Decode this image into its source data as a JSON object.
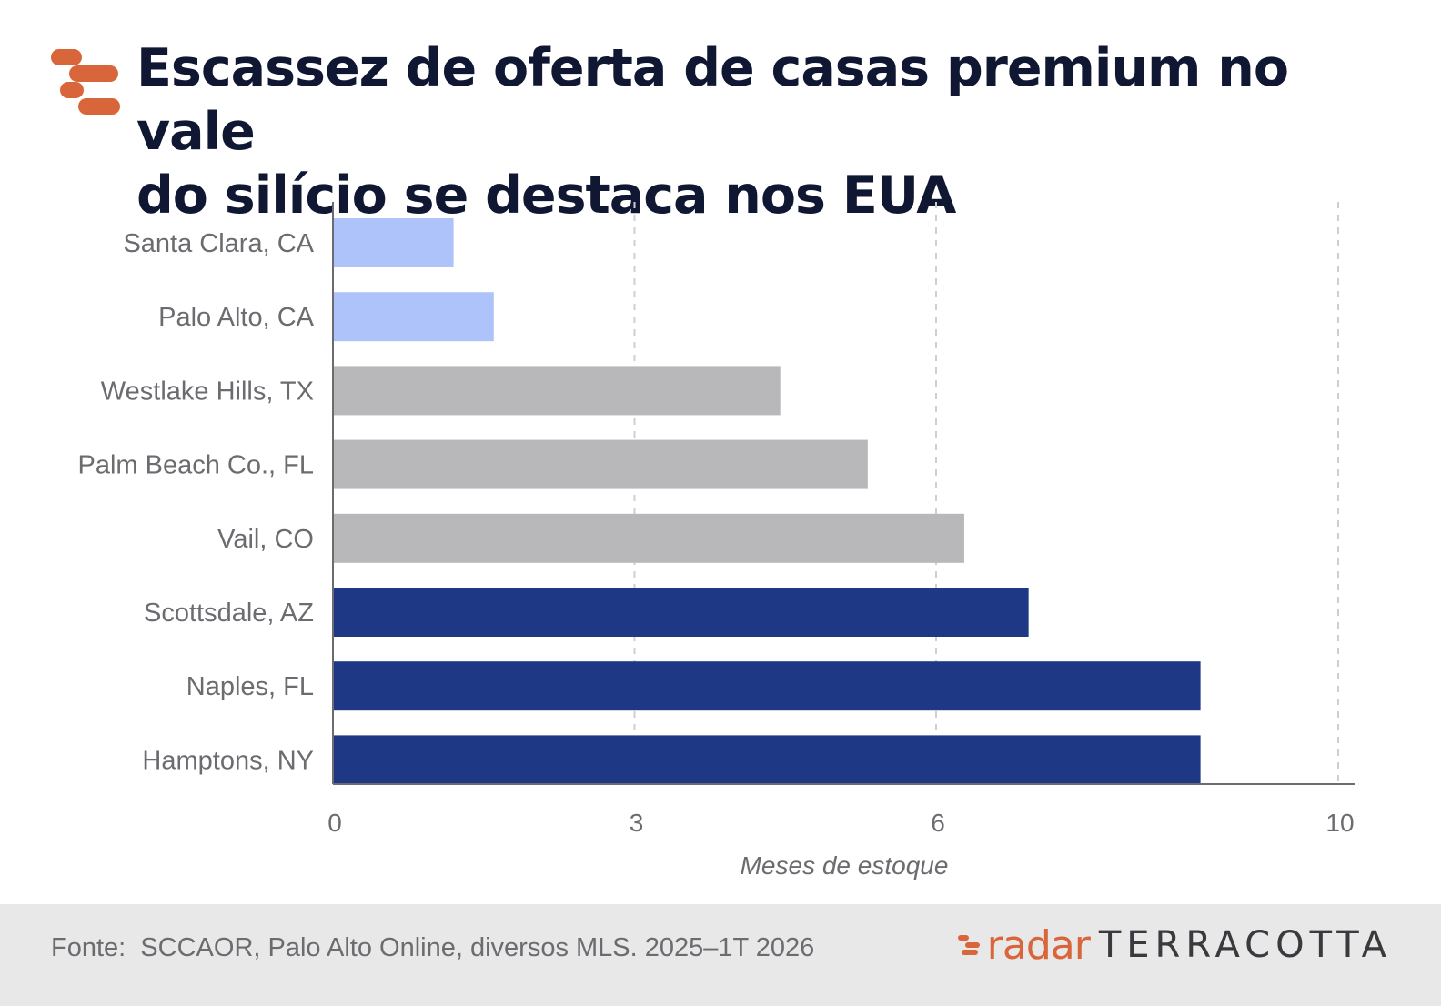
{
  "title_line1": "Escassez de oferta de casas premium no vale",
  "title_line2": "do silício se destaca nos EUA",
  "source": "Fonte:  SCCAOR, Palo Alto Online, diversos MLS. 2025–1T 2026",
  "brand": {
    "radar": "radar",
    "name": "TERRACOTTA"
  },
  "colors": {
    "accent": "#d9653a",
    "light_blue": "#adc3fa",
    "gray": "#b8b8bb",
    "navy": "#1f3885",
    "title": "#0f1733"
  },
  "chart_data": {
    "type": "bar",
    "orientation": "horizontal",
    "categories": [
      "Santa Clara, CA",
      "Palo Alto, CA",
      "Westlake Hills, TX",
      "Palm Beach Co., FL",
      "Vail, CO",
      "Scottsdale, AZ",
      "Naples, FL",
      "Hamptons, NY"
    ],
    "values": [
      1.2,
      1.6,
      4.45,
      5.32,
      6.28,
      6.92,
      8.63,
      8.63
    ],
    "bar_colors": [
      "#adc3fa",
      "#adc3fa",
      "#b8b8bb",
      "#b8b8bb",
      "#b8b8bb",
      "#1f3885",
      "#1f3885",
      "#1f3885"
    ],
    "xticks": [
      0,
      3,
      6,
      10
    ],
    "xlim": [
      0,
      10
    ],
    "xlabel": "Meses de estoque",
    "grid": "vertical dashed at ticks"
  }
}
